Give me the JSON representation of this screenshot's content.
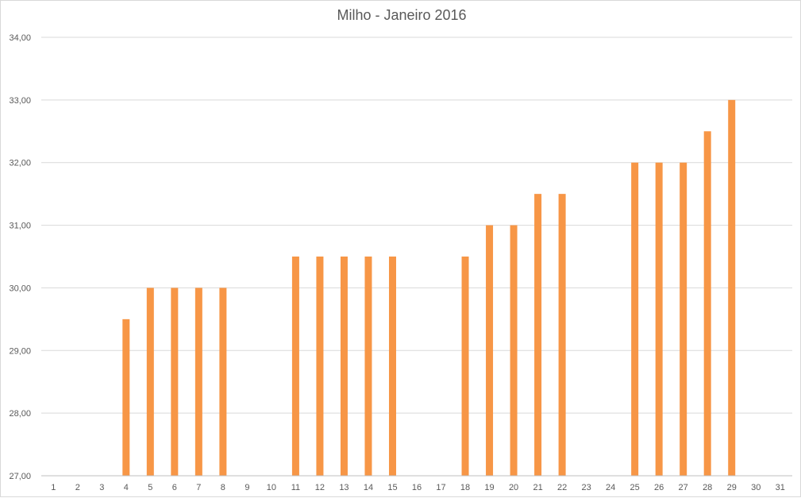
{
  "chart_data": {
    "type": "bar",
    "title": "Milho - Janeiro 2016",
    "xlabel": "",
    "ylabel": "",
    "categories": [
      "1",
      "2",
      "3",
      "4",
      "5",
      "6",
      "7",
      "8",
      "9",
      "10",
      "11",
      "12",
      "13",
      "14",
      "15",
      "16",
      "17",
      "18",
      "19",
      "20",
      "21",
      "22",
      "23",
      "24",
      "25",
      "26",
      "27",
      "28",
      "29",
      "30",
      "31"
    ],
    "values": [
      null,
      null,
      null,
      29.5,
      30.0,
      30.0,
      30.0,
      30.0,
      null,
      null,
      30.5,
      30.5,
      30.5,
      30.5,
      30.5,
      null,
      null,
      30.5,
      31.0,
      31.0,
      31.5,
      31.5,
      null,
      null,
      32.0,
      32.0,
      32.0,
      32.5,
      33.0,
      null,
      null
    ],
    "ylim": [
      27,
      34
    ],
    "yticks": [
      "27,00",
      "28,00",
      "29,00",
      "30,00",
      "31,00",
      "32,00",
      "33,00",
      "34,00"
    ],
    "grid": true,
    "legend": "none",
    "bar_color": "#F79646"
  }
}
